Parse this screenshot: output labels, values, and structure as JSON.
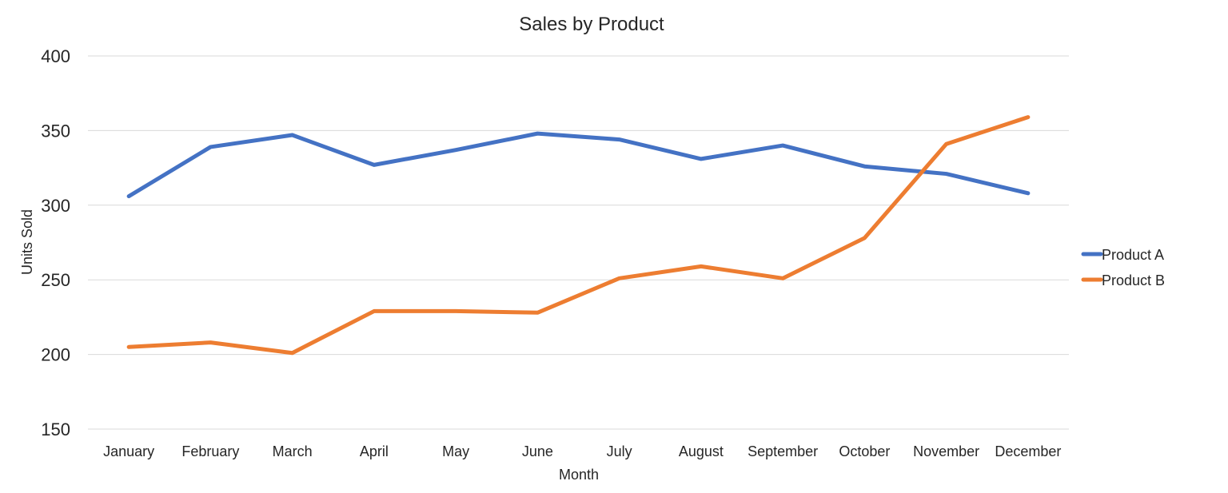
{
  "chart_data": {
    "type": "line",
    "title": "Sales by Product",
    "xlabel": "Month",
    "ylabel": "Units Sold",
    "categories": [
      "January",
      "February",
      "March",
      "April",
      "May",
      "June",
      "July",
      "August",
      "September",
      "October",
      "November",
      "December"
    ],
    "ylim": [
      150,
      400
    ],
    "yticks": [
      150,
      200,
      250,
      300,
      350,
      400
    ],
    "grid": true,
    "legend": "right",
    "series": [
      {
        "name": "Product A",
        "color": "#4472C4",
        "values": [
          306,
          339,
          347,
          327,
          337,
          348,
          344,
          331,
          340,
          326,
          321,
          308
        ]
      },
      {
        "name": "Product B",
        "color": "#ED7D31",
        "values": [
          205,
          208,
          201,
          229,
          229,
          228,
          251,
          259,
          251,
          278,
          341,
          359
        ]
      }
    ]
  }
}
